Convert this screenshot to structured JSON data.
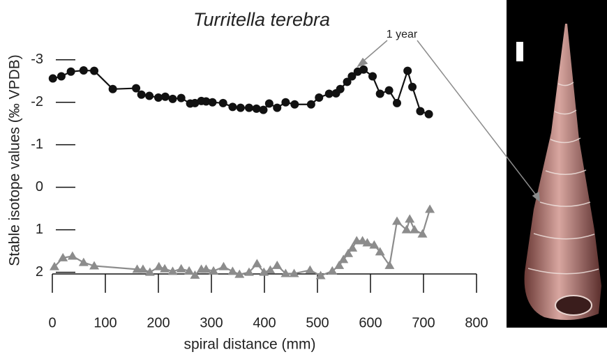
{
  "chart_data": {
    "type": "line",
    "title": "Turritella terebra",
    "x_label": "spiral distance (mm)",
    "y_label": "Stable isotope values (‰ VPDB)",
    "annotation": "1 year",
    "xlim": [
      0,
      800
    ],
    "xticks": [
      0,
      100,
      200,
      300,
      400,
      500,
      600,
      700,
      800
    ],
    "ylim": [
      -3.75,
      2.4
    ],
    "y_inverted": true,
    "yticks": [
      -3,
      -2,
      -1,
      0,
      1,
      2
    ],
    "series": [
      {
        "color": "#111111",
        "marker": "circle",
        "x": [
          1,
          17,
          35,
          59,
          79,
          114,
          158,
          168,
          183,
          200,
          213,
          227,
          243,
          260,
          269,
          281,
          290,
          302,
          322,
          340,
          355,
          371,
          385,
          398,
          409,
          424,
          440,
          457,
          488,
          503,
          522,
          535,
          543,
          556,
          565,
          576,
          587,
          604,
          618,
          635,
          650,
          670,
          679,
          694,
          710
        ],
        "values": [
          -2.56,
          -2.61,
          -2.72,
          -2.75,
          -2.74,
          -2.31,
          -2.33,
          -2.18,
          -2.15,
          -2.11,
          -2.13,
          -2.08,
          -2.1,
          -1.97,
          -1.98,
          -2.03,
          -2.02,
          -2.0,
          -1.98,
          -1.89,
          -1.87,
          -1.87,
          -1.85,
          -1.82,
          -1.97,
          -1.87,
          -2.0,
          -1.95,
          -1.95,
          -2.11,
          -2.2,
          -2.21,
          -2.31,
          -2.48,
          -2.61,
          -2.72,
          -2.77,
          -2.61,
          -2.2,
          -2.28,
          -1.98,
          -2.74,
          -2.36,
          -1.79,
          -1.72
        ]
      },
      {
        "color": "#8c8c8c",
        "marker": "triangle",
        "x": [
          4,
          20,
          38,
          59,
          79,
          160,
          171,
          184,
          201,
          212,
          227,
          243,
          258,
          269,
          281,
          290,
          304,
          323,
          340,
          353,
          371,
          386,
          399,
          411,
          424,
          440,
          456,
          486,
          506,
          528,
          541,
          549,
          558,
          566,
          574,
          585,
          594,
          607,
          618,
          636,
          650,
          668,
          674,
          683,
          698,
          712
        ],
        "values": [
          1.87,
          1.66,
          1.62,
          1.77,
          1.85,
          1.93,
          1.93,
          2.0,
          1.87,
          1.92,
          1.98,
          1.92,
          1.97,
          2.07,
          1.93,
          1.93,
          1.97,
          1.87,
          1.98,
          2.05,
          2.0,
          1.8,
          2.0,
          1.95,
          1.84,
          2.03,
          2.03,
          1.95,
          2.08,
          1.97,
          1.84,
          1.7,
          1.56,
          1.43,
          1.26,
          1.26,
          1.31,
          1.36,
          1.52,
          1.84,
          0.8,
          1.0,
          0.75,
          1.0,
          1.1,
          0.52
        ]
      }
    ]
  }
}
